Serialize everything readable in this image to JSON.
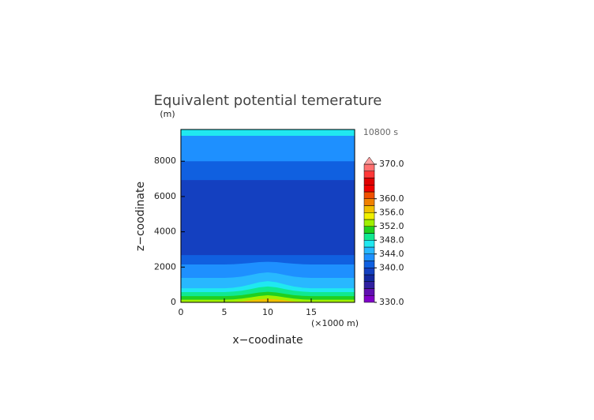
{
  "chart_data": {
    "type": "contour",
    "title": "Equivalent potential temerature",
    "x_label": "x−coodinate",
    "y_label": "z−coodinate",
    "y_unit": "(m)",
    "x_unit": "(×1000 m)",
    "time_label": "10800 s",
    "xlim": [
      0,
      20
    ],
    "xticks": [
      0,
      5,
      10,
      15
    ],
    "ylim": [
      0,
      9800
    ],
    "yticks": [
      0,
      2000,
      4000,
      6000,
      8000
    ],
    "x": [
      0,
      1,
      2,
      3,
      4,
      5,
      6,
      7,
      8,
      9,
      10,
      11,
      12,
      13,
      14,
      15,
      16,
      17,
      18,
      19,
      20
    ],
    "bands": [
      {
        "value": 346,
        "top": [
          9800,
          9800,
          9800,
          9800,
          9800,
          9800,
          9800,
          9800,
          9800,
          9800,
          9800,
          9800,
          9800,
          9800,
          9800,
          9800,
          9800,
          9800,
          9800,
          9800,
          9800
        ]
      },
      {
        "value": 342,
        "top": [
          9440,
          9440,
          9440,
          9440,
          9440,
          9440,
          9440,
          9440,
          9440,
          9440,
          9440,
          9440,
          9440,
          9440,
          9440,
          9440,
          9440,
          9440,
          9440,
          9440,
          9440
        ]
      },
      {
        "value": 340,
        "top": [
          8000,
          8000,
          8000,
          8000,
          8000,
          8000,
          8000,
          8000,
          8000,
          8000,
          8000,
          8000,
          8000,
          8000,
          8000,
          8000,
          8000,
          8000,
          8000,
          8000,
          8000
        ]
      },
      {
        "value": 338,
        "top": [
          6930,
          6930,
          6930,
          6930,
          6930,
          6930,
          6930,
          6930,
          6930,
          6930,
          6930,
          6930,
          6930,
          6930,
          6930,
          6930,
          6930,
          6930,
          6930,
          6930,
          6930
        ]
      },
      {
        "value": 340,
        "top": [
          2680,
          2680,
          2680,
          2680,
          2680,
          2680,
          2680,
          2680,
          2680,
          2680,
          2680,
          2680,
          2680,
          2680,
          2680,
          2680,
          2680,
          2680,
          2680,
          2680,
          2680
        ]
      },
      {
        "value": 342,
        "top": [
          2150,
          2150,
          2150,
          2150,
          2150,
          2150,
          2160,
          2190,
          2230,
          2280,
          2300,
          2280,
          2230,
          2190,
          2160,
          2150,
          2150,
          2150,
          2150,
          2150,
          2150
        ]
      },
      {
        "value": 344,
        "top": [
          1390,
          1390,
          1390,
          1390,
          1390,
          1390,
          1410,
          1460,
          1550,
          1650,
          1700,
          1650,
          1550,
          1460,
          1410,
          1390,
          1390,
          1390,
          1390,
          1390,
          1390
        ]
      },
      {
        "value": 346,
        "top": [
          800,
          800,
          800,
          800,
          800,
          800,
          830,
          900,
          1010,
          1140,
          1200,
          1140,
          1010,
          900,
          830,
          800,
          800,
          800,
          800,
          800,
          800
        ]
      },
      {
        "value": 348,
        "top": [
          580,
          580,
          580,
          580,
          580,
          580,
          610,
          660,
          750,
          850,
          900,
          850,
          750,
          660,
          610,
          580,
          580,
          580,
          580,
          580,
          580
        ]
      },
      {
        "value": 350,
        "top": [
          350,
          350,
          350,
          350,
          350,
          350,
          370,
          410,
          480,
          560,
          600,
          560,
          480,
          410,
          370,
          350,
          350,
          350,
          350,
          350,
          350
        ]
      },
      {
        "value": 352,
        "top": [
          150,
          150,
          150,
          150,
          150,
          150,
          170,
          210,
          280,
          360,
          400,
          360,
          280,
          210,
          170,
          150,
          150,
          150,
          150,
          150,
          150
        ]
      },
      {
        "value": 356,
        "top": [
          0,
          0,
          0,
          0,
          0,
          0,
          20,
          50,
          110,
          170,
          200,
          170,
          110,
          50,
          20,
          0,
          0,
          0,
          0,
          0,
          0
        ]
      }
    ],
    "colorbar": {
      "levels": [
        330,
        332,
        334,
        336,
        338,
        340,
        342,
        344,
        346,
        348,
        350,
        352,
        354,
        356,
        358,
        360,
        362,
        364,
        366,
        368,
        370
      ],
      "colors": [
        "#8000c8",
        "#6010b0",
        "#3020a0",
        "#1428a0",
        "#1440c0",
        "#1060e0",
        "#1e90ff",
        "#28b8ff",
        "#20e8f0",
        "#10e890",
        "#20d020",
        "#a0f000",
        "#f0f000",
        "#f0c000",
        "#f08000",
        "#f05000",
        "#f00000",
        "#e00000",
        "#ff3838",
        "#ff7070"
      ],
      "extend_color": "#ffa0a0",
      "ticks": [
        {
          "value": 370,
          "label": "370.0"
        },
        {
          "value": 360,
          "label": "360.0"
        },
        {
          "value": 356,
          "label": "356.0"
        },
        {
          "value": 352,
          "label": "352.0"
        },
        {
          "value": 348,
          "label": "348.0"
        },
        {
          "value": 344,
          "label": "344.0"
        },
        {
          "value": 340,
          "label": "340.0"
        },
        {
          "value": 330,
          "label": "330.0"
        }
      ]
    }
  }
}
